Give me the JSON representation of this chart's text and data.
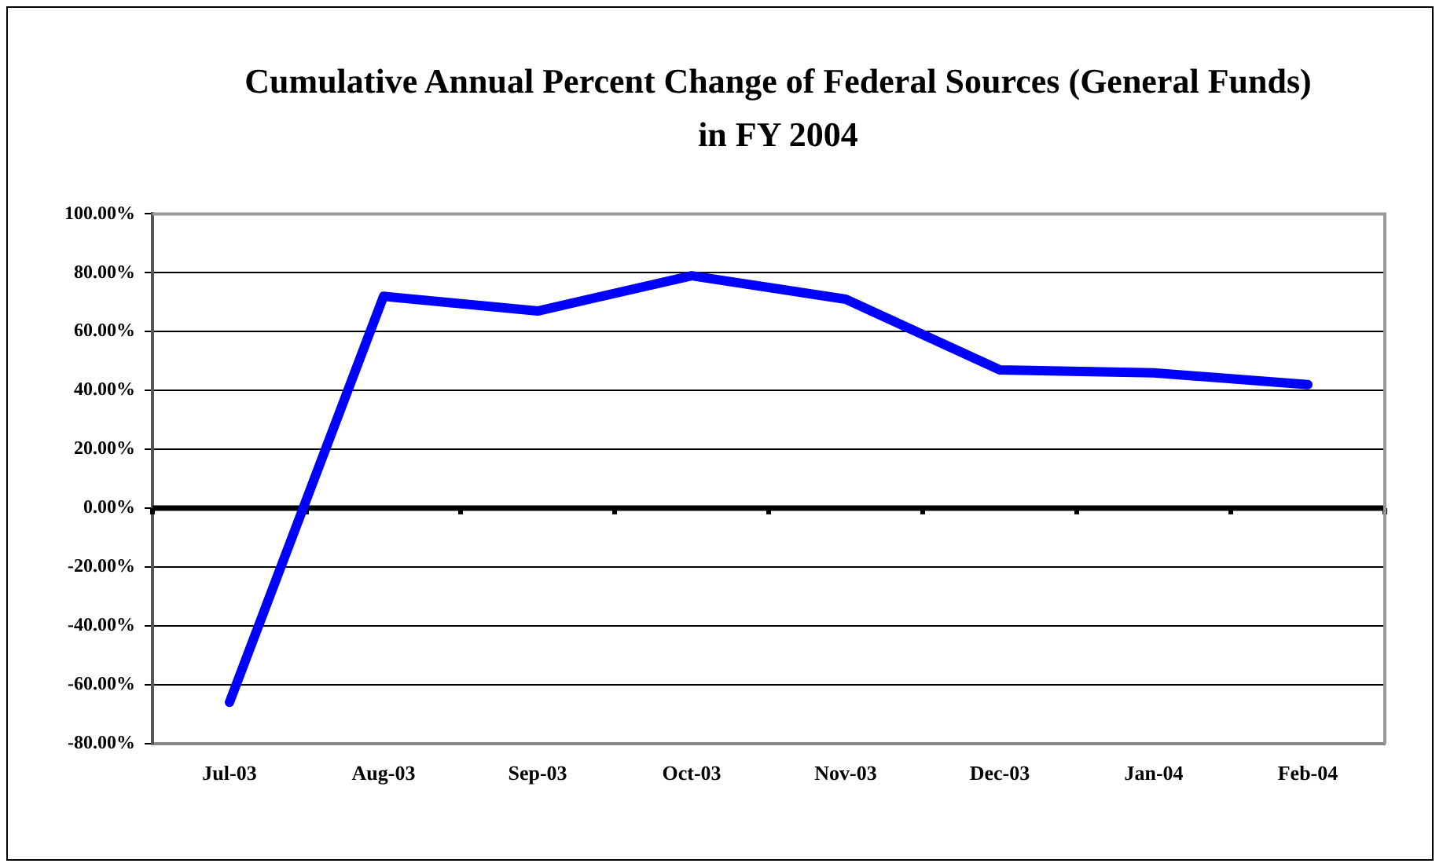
{
  "chart_data": {
    "type": "line",
    "title": "Cumulative Annual Percent Change of Federal Sources (General Funds) in FY 2004",
    "categories": [
      "Jul-03",
      "Aug-03",
      "Sep-03",
      "Oct-03",
      "Nov-03",
      "Dec-03",
      "Jan-04",
      "Feb-04"
    ],
    "series": [
      {
        "color": "#0000ff",
        "values": [
          -66,
          72,
          67,
          79,
          71,
          47,
          46,
          42
        ]
      }
    ],
    "ylim": [
      -80,
      100
    ],
    "yticks": [
      {
        "value": -80,
        "label": "-80.00%"
      },
      {
        "value": -60,
        "label": "-60.00%"
      },
      {
        "value": -40,
        "label": "-40.00%"
      },
      {
        "value": -20,
        "label": "-20.00%"
      },
      {
        "value": 0,
        "label": "0.00%"
      },
      {
        "value": 20,
        "label": "20.00%"
      },
      {
        "value": 40,
        "label": "40.00%"
      },
      {
        "value": 60,
        "label": "60.00%"
      },
      {
        "value": 80,
        "label": "80.00%"
      },
      {
        "value": 100,
        "label": "100.00%"
      }
    ],
    "grid": "y",
    "legend": false,
    "marker": "none",
    "line_style": "solid"
  }
}
